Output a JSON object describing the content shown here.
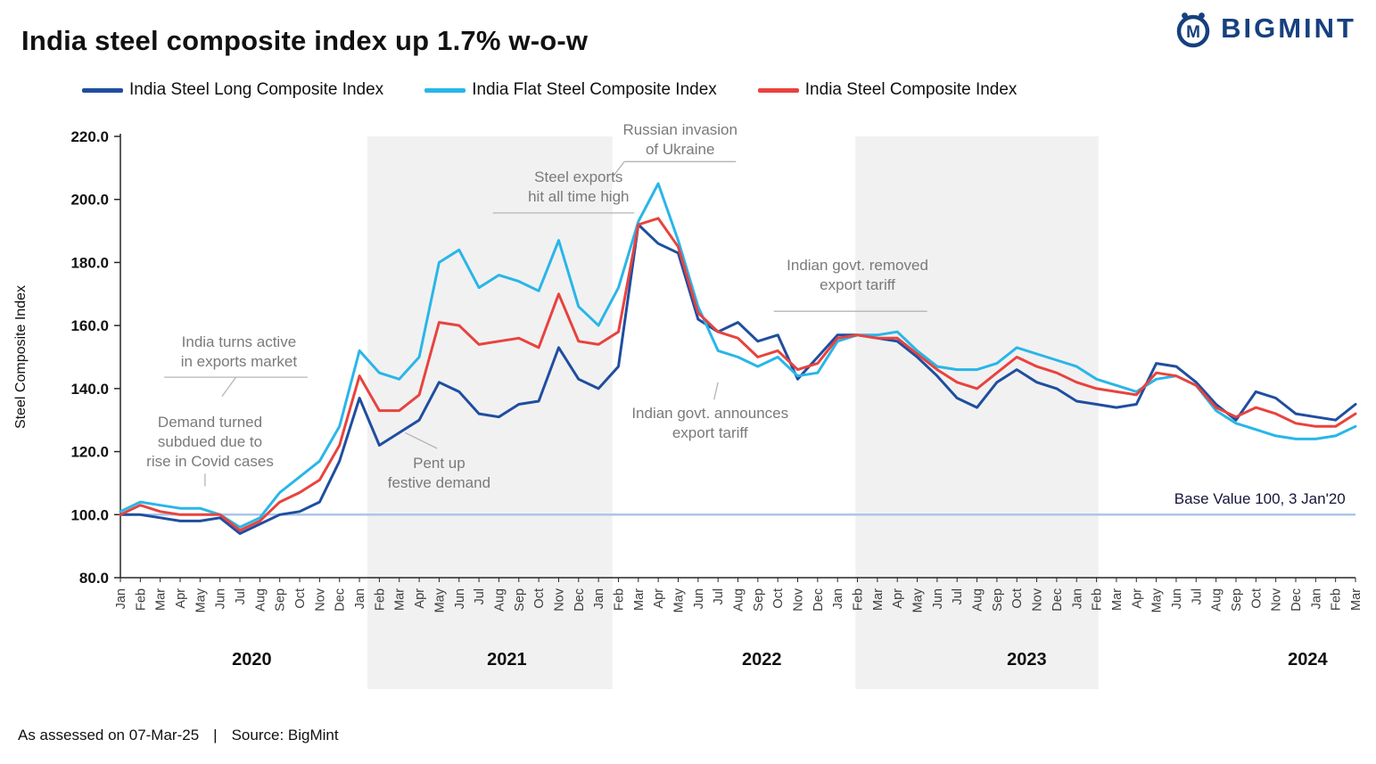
{
  "header": {
    "title": "India steel composite index up 1.7% w-o-w",
    "logo_text": "BIGMINT",
    "logo_monogram": "M",
    "logo_color": "#16407f"
  },
  "legend": {
    "items": [
      {
        "label": "India Steel Long Composite Index",
        "color": "#1f4e9f"
      },
      {
        "label": "India Flat Steel Composite Index",
        "color": "#29b6e8"
      },
      {
        "label": "India Steel Composite Index",
        "color": "#e8433e"
      }
    ]
  },
  "chart_data": {
    "type": "line",
    "title": "India steel composite index up 1.7% w-o-w",
    "ylabel": "Steel Composite Index",
    "ylim": [
      80,
      220
    ],
    "yticks": [
      80,
      100,
      120,
      140,
      160,
      180,
      200,
      220
    ],
    "ytick_labels": [
      "80.0",
      "100.0",
      "120.0",
      "140.0",
      "160.0",
      "180.0",
      "200.0",
      "220.0"
    ],
    "grid": false,
    "legend_position": "top",
    "x_months": [
      "Jan",
      "Feb",
      "Mar",
      "Apr",
      "May",
      "Jun",
      "Jul",
      "Aug",
      "Sep",
      "Oct",
      "Nov",
      "Dec",
      "Jan",
      "Feb",
      "Mar",
      "Apr",
      "May",
      "Jun",
      "Jul",
      "Aug",
      "Sep",
      "Oct",
      "Nov",
      "Dec",
      "Jan",
      "Feb",
      "Mar",
      "Apr",
      "May",
      "Jun",
      "Jul",
      "Aug",
      "Sep",
      "Oct",
      "Nov",
      "Dec",
      "Jan",
      "Feb",
      "Mar",
      "Apr",
      "May",
      "Jun",
      "Jul",
      "Aug",
      "Sep",
      "Oct",
      "Nov",
      "Dec",
      "Jan",
      "Feb",
      "Mar",
      "Apr",
      "May",
      "Jun",
      "Jul",
      "Aug",
      "Sep",
      "Oct",
      "Nov",
      "Dec",
      "Jan",
      "Feb",
      "Mar"
    ],
    "years": [
      {
        "label": "2020",
        "center_index": 6.6
      },
      {
        "label": "2021",
        "center_index": 19.4
      },
      {
        "label": "2022",
        "center_index": 32.2
      },
      {
        "label": "2023",
        "center_index": 45.5
      },
      {
        "label": "2024",
        "center_index": 59.6
      }
    ],
    "shaded_bands": [
      {
        "start_index": 12.4,
        "end_index": 24.7
      },
      {
        "start_index": 36.9,
        "end_index": 49.1
      }
    ],
    "base_line": {
      "value": 100,
      "label": "Base Value 100, 3 Jan'20",
      "color": "#aac7e8"
    },
    "series": [
      {
        "name": "India Steel Long Composite Index",
        "color": "#1f4e9f",
        "values": [
          100,
          100,
          99,
          98,
          98,
          99,
          94,
          97,
          100,
          101,
          104,
          117,
          137,
          122,
          126,
          130,
          142,
          139,
          132,
          131,
          135,
          136,
          153,
          143,
          140,
          147,
          192,
          186,
          183,
          162,
          158,
          161,
          155,
          157,
          143,
          150,
          157,
          157,
          156,
          155,
          150,
          144,
          137,
          134,
          142,
          146,
          142,
          140,
          136,
          135,
          134,
          135,
          148,
          147,
          142,
          135,
          130,
          139,
          137,
          132,
          131,
          130,
          135
        ]
      },
      {
        "name": "India Flat Steel Composite Index",
        "color": "#29b6e8",
        "values": [
          101,
          104,
          103,
          102,
          102,
          100,
          96,
          99,
          107,
          112,
          117,
          128,
          152,
          145,
          143,
          150,
          180,
          184,
          172,
          176,
          174,
          171,
          187,
          166,
          160,
          172,
          193,
          205,
          187,
          166,
          152,
          150,
          147,
          150,
          144,
          145,
          155,
          157,
          157,
          158,
          152,
          147,
          146,
          146,
          148,
          153,
          151,
          149,
          147,
          143,
          141,
          139,
          143,
          144,
          141,
          133,
          129,
          127,
          125,
          124,
          124,
          125,
          128
        ]
      },
      {
        "name": "India Steel Composite Index",
        "color": "#e8433e",
        "values": [
          100,
          103,
          101,
          100,
          100,
          100,
          95,
          98,
          104,
          107,
          111,
          122,
          144,
          133,
          133,
          138,
          161,
          160,
          154,
          155,
          156,
          153,
          170,
          155,
          154,
          158,
          192,
          194,
          185,
          164,
          158,
          156,
          150,
          152,
          146,
          148,
          156,
          157,
          156,
          156,
          151,
          146,
          142,
          140,
          145,
          150,
          147,
          145,
          142,
          140,
          139,
          138,
          145,
          144,
          141,
          134,
          131,
          134,
          132,
          129,
          128,
          128,
          132
        ]
      }
    ],
    "annotations": [
      {
        "id": "covid-demand",
        "text": "Demand turned\nsubdued due to\nrise in Covid cases",
        "i": 4.5,
        "v": 123,
        "leaders": [
          [
            [
              4.25,
              113
            ],
            [
              4.25,
              109
            ]
          ]
        ]
      },
      {
        "id": "exports-active",
        "text": "India turns active\nin exports market",
        "i": 5.95,
        "v": 151.5,
        "leaders": [
          [
            [
              2.2,
              143.6
            ],
            [
              9.4,
              143.6
            ]
          ],
          [
            [
              5.8,
              143.6
            ],
            [
              5.1,
              137.5
            ]
          ]
        ]
      },
      {
        "id": "pent-up-demand",
        "text": "Pent up\nfestive demand",
        "i": 16.0,
        "v": 113,
        "leaders": [
          [
            [
              14.3,
              126
            ],
            [
              15.9,
              121
            ]
          ]
        ]
      },
      {
        "id": "steel-exports-high",
        "text": "Steel exports\nhit all time high",
        "i": 23.0,
        "v": 204,
        "leaders": [
          [
            [
              18.7,
              195.7
            ],
            [
              25.8,
              195.7
            ]
          ]
        ]
      },
      {
        "id": "russian-invasion",
        "text": "Russian invasion\nof Ukraine",
        "i": 28.1,
        "v": 219,
        "leaders": [
          [
            [
              25.3,
              212
            ],
            [
              30.9,
              212
            ]
          ],
          [
            [
              25.3,
              212
            ],
            [
              24.75,
              207.5
            ]
          ]
        ]
      },
      {
        "id": "announce-tariff",
        "text": "Indian govt. announces\nexport tariff",
        "i": 29.6,
        "v": 129,
        "leaders": [
          [
            [
              29.8,
              136.5
            ],
            [
              30.0,
              142
            ]
          ]
        ]
      },
      {
        "id": "removed-tariff",
        "text": "Indian govt. removed\nexport tariff",
        "i": 37.0,
        "v": 176,
        "leaders": [
          [
            [
              32.8,
              164.5
            ],
            [
              40.5,
              164.5
            ]
          ]
        ]
      },
      {
        "id": "base-value",
        "text": "Base Value 100, 3 Jan'20",
        "i": 57.2,
        "v": 105,
        "style": "dark"
      }
    ]
  },
  "footer": {
    "assessed": "As assessed on 07-Mar-25",
    "separator": "|",
    "source": "Source: BigMint"
  }
}
